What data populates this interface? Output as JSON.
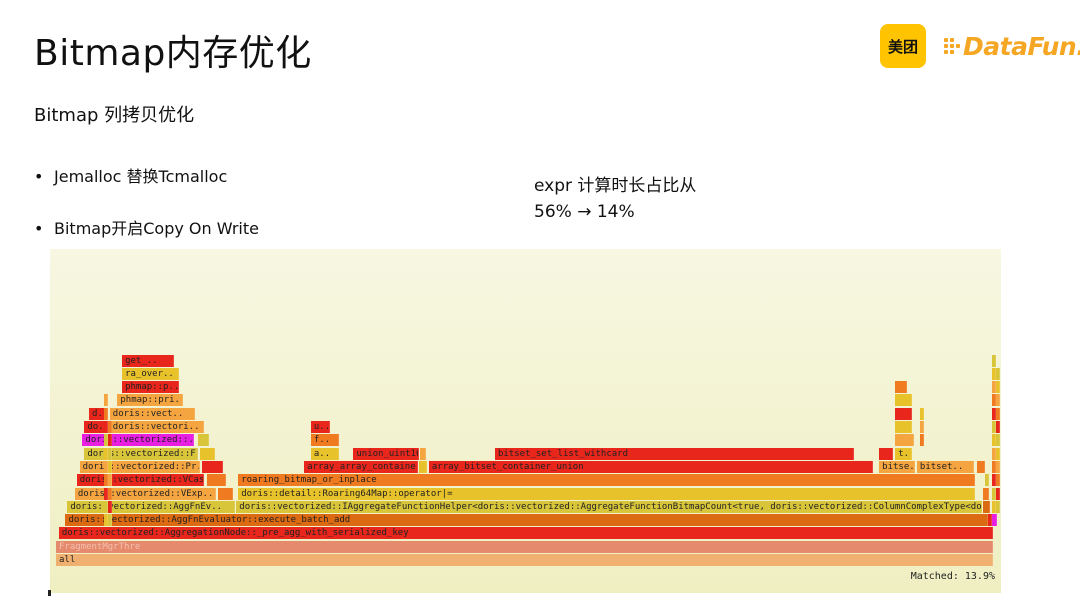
{
  "slide": {
    "title": "Bitmap内存优化",
    "subtitle": "Bitmap 列拷贝优化",
    "bullets": [
      "Jemalloc 替换Tcmalloc",
      "Bitmap开启Copy On Write"
    ],
    "bullet_symbol": "•",
    "expr_line1": "expr 计算时长占比从",
    "expr_line2": "56% → 14%"
  },
  "logos": {
    "meituan": "美团",
    "datafun": "DataFun."
  },
  "flamegraph": {
    "matched": "Matched: 13.9%",
    "colors": {
      "red": "#e8261c",
      "orange": "#f07a1f",
      "lightorange": "#f5a540",
      "yellow": "#e8c22a",
      "olive": "#d8c53a",
      "darkorange": "#dc6a12",
      "gray": "#e58a6c",
      "magenta": "#e81fe0",
      "peach": "#f0b070"
    },
    "frames": [
      {
        "label": "all",
        "x": 0.0,
        "w": 0.993,
        "level": 0,
        "color": "peach"
      },
      {
        "label": "FragmentMgrThre",
        "x": 0.0,
        "w": 0.993,
        "level": 1,
        "color": "gray"
      },
      {
        "label": "doris::vectorized::AggregationNode::_pre_agg_with_serialized_key",
        "x": 0.003,
        "w": 0.99,
        "level": 2,
        "color": "red"
      },
      {
        "label": "doris::vectorized::AggFnEvaluator::execute_batch_add",
        "x": 0.01,
        "w": 0.977,
        "level": 3,
        "color": "darkorange"
      },
      {
        "label": "",
        "x": 0.987,
        "w": 0.005,
        "level": 3,
        "color": "red"
      },
      {
        "label": "",
        "x": 0.992,
        "w": 0.005,
        "level": 3,
        "color": "magenta"
      },
      {
        "label": "doris::vectorized::AggFnEv..",
        "x": 0.012,
        "w": 0.178,
        "level": 4,
        "color": "olive"
      },
      {
        "label": "doris::vectorized::IAggregateFunctionHelper<doris::vectorized::AggregateFunctionBitmapCount<true, doris::vectorized::ColumnComplexType<doris::B..",
        "x": 0.191,
        "w": 0.79,
        "level": 4,
        "color": "olive"
      },
      {
        "label": "",
        "x": 0.982,
        "w": 0.007,
        "level": 4,
        "color": "darkorange"
      },
      {
        "label": "doris::vectorized::VExp..",
        "x": 0.02,
        "w": 0.15,
        "level": 5,
        "color": "lightorange"
      },
      {
        "label": "",
        "x": 0.172,
        "w": 0.015,
        "level": 5,
        "color": "orange"
      },
      {
        "label": "doris::detail::Roaring64Map::operator|=",
        "x": 0.193,
        "w": 0.78,
        "level": 5,
        "color": "yellow"
      },
      {
        "label": "",
        "x": 0.982,
        "w": 0.006,
        "level": 5,
        "color": "orange"
      },
      {
        "label": "doris::vectorized::VCas..",
        "x": 0.022,
        "w": 0.135,
        "level": 6,
        "color": "red"
      },
      {
        "label": "",
        "x": 0.16,
        "w": 0.02,
        "level": 6,
        "color": "orange"
      },
      {
        "label": "roaring_bitmap_or_inplace",
        "x": 0.193,
        "w": 0.78,
        "level": 6,
        "color": "orange"
      },
      {
        "label": "",
        "x": 0.984,
        "w": 0.004,
        "level": 6,
        "color": "olive"
      },
      {
        "label": "doris::vectorized::Pr..",
        "x": 0.025,
        "w": 0.128,
        "level": 7,
        "color": "lightorange"
      },
      {
        "label": "",
        "x": 0.155,
        "w": 0.022,
        "level": 7,
        "color": "red"
      },
      {
        "label": "array_array_containe..",
        "x": 0.263,
        "w": 0.12,
        "level": 7,
        "color": "red"
      },
      {
        "label": "",
        "x": 0.385,
        "w": 0.008,
        "level": 7,
        "color": "yellow"
      },
      {
        "label": "array_bitset_container_union",
        "x": 0.395,
        "w": 0.47,
        "level": 7,
        "color": "red"
      },
      {
        "label": "bitse..",
        "x": 0.872,
        "w": 0.038,
        "level": 7,
        "color": "lightorange"
      },
      {
        "label": "bitset..",
        "x": 0.912,
        "w": 0.06,
        "level": 7,
        "color": "lightorange"
      },
      {
        "label": "",
        "x": 0.976,
        "w": 0.008,
        "level": 7,
        "color": "orange"
      },
      {
        "label": "doris::vectorized::F..",
        "x": 0.03,
        "w": 0.12,
        "level": 8,
        "color": "olive"
      },
      {
        "label": "",
        "x": 0.153,
        "w": 0.015,
        "level": 8,
        "color": "yellow"
      },
      {
        "label": "a..",
        "x": 0.27,
        "w": 0.03,
        "level": 8,
        "color": "yellow"
      },
      {
        "label": "union_uint16",
        "x": 0.315,
        "w": 0.07,
        "level": 8,
        "color": "red"
      },
      {
        "label": "",
        "x": 0.386,
        "w": 0.006,
        "level": 8,
        "color": "lightorange"
      },
      {
        "label": "bitset_set_list_withcard",
        "x": 0.465,
        "w": 0.38,
        "level": 8,
        "color": "red"
      },
      {
        "label": "",
        "x": 0.872,
        "w": 0.015,
        "level": 8,
        "color": "red"
      },
      {
        "label": "t..",
        "x": 0.889,
        "w": 0.018,
        "level": 8,
        "color": "yellow"
      },
      {
        "label": "doris::vectorized::..",
        "x": 0.028,
        "w": 0.118,
        "level": 9,
        "color": "magenta"
      },
      {
        "label": "",
        "x": 0.15,
        "w": 0.012,
        "level": 9,
        "color": "olive"
      },
      {
        "label": "f..",
        "x": 0.27,
        "w": 0.03,
        "level": 9,
        "color": "orange"
      },
      {
        "label": "",
        "x": 0.889,
        "w": 0.02,
        "level": 9,
        "color": "lightorange"
      },
      {
        "label": "do..",
        "x": 0.03,
        "w": 0.025,
        "level": 10,
        "color": "red"
      },
      {
        "label": "doris::vectori..",
        "x": 0.057,
        "w": 0.1,
        "level": 10,
        "color": "lightorange"
      },
      {
        "label": "u..",
        "x": 0.27,
        "w": 0.02,
        "level": 10,
        "color": "red"
      },
      {
        "label": "",
        "x": 0.889,
        "w": 0.018,
        "level": 10,
        "color": "yellow"
      },
      {
        "label": "d..",
        "x": 0.035,
        "w": 0.02,
        "level": 11,
        "color": "red"
      },
      {
        "label": "doris::vect..",
        "x": 0.057,
        "w": 0.09,
        "level": 11,
        "color": "lightorange"
      },
      {
        "label": "",
        "x": 0.889,
        "w": 0.018,
        "level": 11,
        "color": "red"
      },
      {
        "label": "phmap::pri..",
        "x": 0.065,
        "w": 0.07,
        "level": 12,
        "color": "lightorange"
      },
      {
        "label": "",
        "x": 0.889,
        "w": 0.018,
        "level": 12,
        "color": "yellow"
      },
      {
        "label": "phmap::p..",
        "x": 0.07,
        "w": 0.06,
        "level": 13,
        "color": "red"
      },
      {
        "label": "",
        "x": 0.889,
        "w": 0.012,
        "level": 13,
        "color": "orange"
      },
      {
        "label": "ra_over..",
        "x": 0.07,
        "w": 0.06,
        "level": 14,
        "color": "yellow"
      },
      {
        "label": "get_..",
        "x": 0.07,
        "w": 0.055,
        "level": 15,
        "color": "red"
      }
    ]
  }
}
